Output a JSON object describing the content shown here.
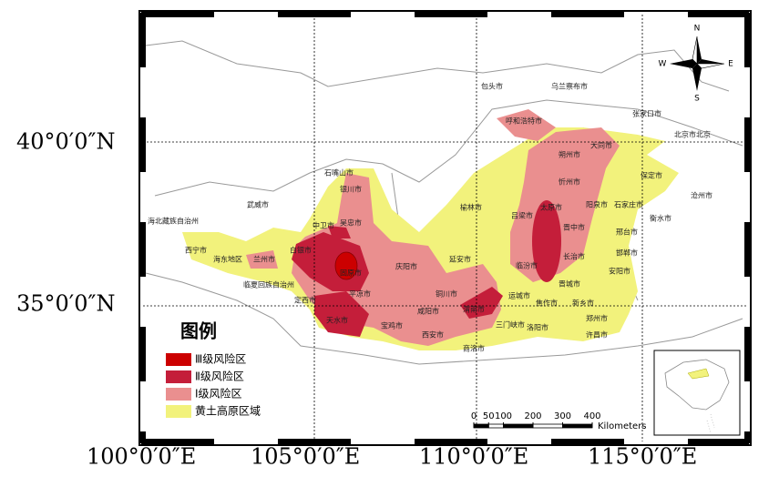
{
  "graticule": {
    "lat_labels": [
      "40°0′0″N",
      "35°0′0″N"
    ],
    "lon_labels": [
      "100°0′0″E",
      "105°0′0″E",
      "110°0′0″E",
      "115°0′0″E"
    ]
  },
  "compass": {
    "n": "N",
    "s": "S",
    "w": "W",
    "e": "E"
  },
  "legend": {
    "title": "图例",
    "items": [
      {
        "label": "Ⅲ级风险区",
        "color": "#cc0000"
      },
      {
        "label": "Ⅱ级风险区",
        "color": "#c41e3a"
      },
      {
        "label": "Ⅰ级风险区",
        "color": "#ea8f8f"
      },
      {
        "label": "黄土高原区域",
        "color": "#f2f27c"
      }
    ]
  },
  "scale_bar": {
    "ticks": [
      0,
      50,
      100,
      200,
      300,
      400
    ],
    "unit": "Kilometers"
  },
  "map": {
    "cities": [
      "包头市",
      "乌兰察布市",
      "张家口市",
      "北京市北京",
      "呼和浩特市",
      "大同市",
      "朔州市",
      "忻州市",
      "保定市",
      "沧州市",
      "石家庄市",
      "阳泉市",
      "太原市",
      "吕梁市",
      "晋中市",
      "衡水市",
      "榆林市",
      "邢台市",
      "长治市",
      "邯郸市",
      "临汾市",
      "安阳市",
      "晋城市",
      "延安市",
      "庆阳市",
      "运城市",
      "焦作市",
      "新乡市",
      "铜川市",
      "渭南市",
      "郑州市",
      "咸阳市",
      "三门峡市",
      "洛阳市",
      "许昌市",
      "西安市",
      "宝鸡市",
      "商洛市",
      "平凉市",
      "天水市",
      "定西市",
      "兰州市",
      "临夏回族自治州",
      "白银市",
      "固原市",
      "吴忠市",
      "中卫市",
      "石嘴山市",
      "银川市",
      "武威市",
      "海北藏族自治州",
      "西宁市",
      "海东地区"
    ]
  }
}
